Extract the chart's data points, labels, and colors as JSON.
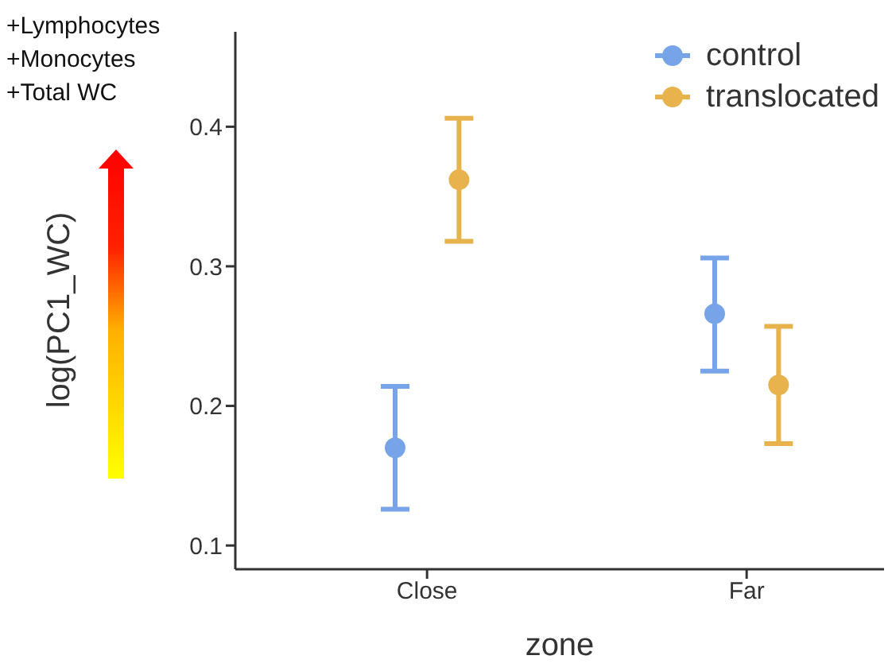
{
  "chart_data": {
    "type": "scatter",
    "xlabel": "zone",
    "ylabel": "log(PC1_WC)",
    "categories": [
      "Close",
      "Far"
    ],
    "series": [
      {
        "name": "control",
        "color": "#77a4e8",
        "values": [
          0.17,
          0.266
        ],
        "errors": [
          [
            0.126,
            0.214
          ],
          [
            0.225,
            0.306
          ]
        ]
      },
      {
        "name": "translocated",
        "color": "#e8b24d",
        "values": [
          0.362,
          0.215
        ],
        "errors": [
          [
            0.318,
            0.406
          ],
          [
            0.173,
            0.257
          ]
        ]
      }
    ],
    "ylim": [
      0.083,
      0.468
    ],
    "yticks": [
      0.1,
      0.2,
      0.3,
      0.4
    ],
    "legend": "top right",
    "marker": "circle",
    "annotations": [
      "+Lymphocytes",
      "+Monocytes",
      "+Total WC"
    ]
  }
}
